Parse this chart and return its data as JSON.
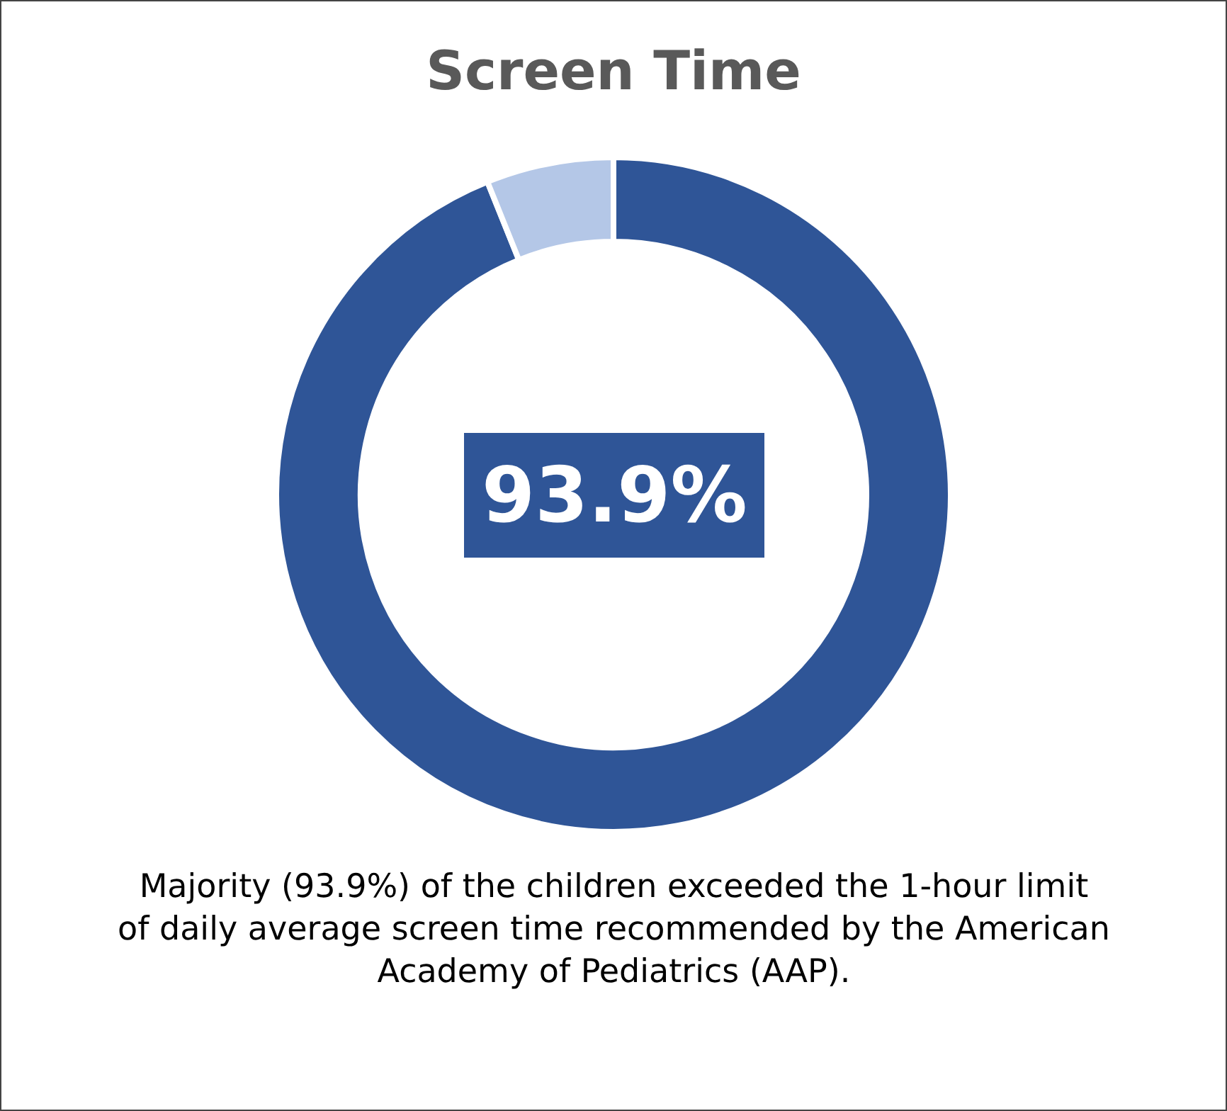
{
  "chart_data": {
    "type": "donut",
    "title": "Screen Time",
    "categories": [
      null,
      null
    ],
    "values": [
      93.9,
      6.1
    ],
    "colors": [
      "#2f5597",
      "#b4c7e7"
    ],
    "value_labels": [
      "93.9%",
      null
    ],
    "annotations": [
      "Majority (93.9%) of the children exceeded the 1-hour limit of daily average screen time recommended by the American Academy of Pediatrics (AAP)."
    ]
  }
}
